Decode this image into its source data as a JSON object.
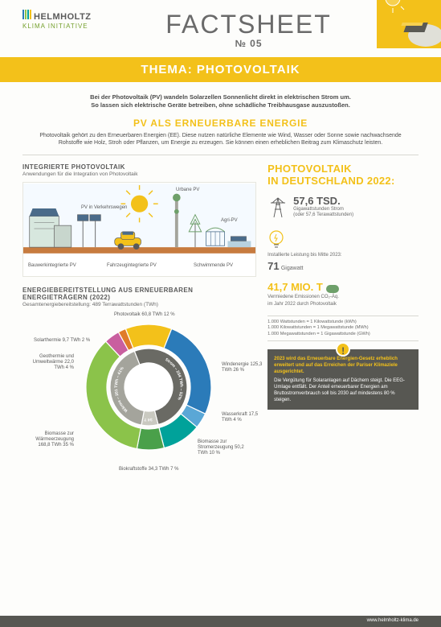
{
  "logo": {
    "name": "HELMHOLTZ",
    "sub": "KLIMA INITIATIVE",
    "bar_colors": [
      "#2b7bb9",
      "#8bc34a",
      "#00a29a",
      "#f3c11a"
    ]
  },
  "factsheet": {
    "title": "FACTSHEET",
    "number": "№ 05"
  },
  "thema": "THEMA: PHOTOVOLTAIK",
  "intro": {
    "line1": "Bei der Photovoltaik (PV) wandeln Solarzellen Sonnenlicht direkt in elektrischen Strom um.",
    "line2": "So lassen sich elektrische Geräte betreiben, ohne schädliche Treibhausgase auszustoßen."
  },
  "section_ee": {
    "title": "PV ALS ERNEUERBARE ENERGIE",
    "text": "Photovoltaik gehört zu den Erneuerbaren Energien (EE). Diese nutzen natürliche Elemente wie Wind, Wasser oder Sonne sowie nachwachsende Rohstoffe wie Holz, Stroh oder Pflanzen, um Energie zu erzeugen. Sie können einen erheblichen Beitrag zum Klimaschutz leisten."
  },
  "integrated": {
    "title": "INTEGRIERTE PHOTOVOLTAIK",
    "sub": "Anwendungen für die Integration von Photovoltaik",
    "labels": {
      "verkehr": "PV in Verkehrswegen",
      "urbane": "Urbane PV",
      "agri": "Agri-PV",
      "bauwerk": "Bauwerkintegrierte PV",
      "fahrzeug": "Fahrzeugintegrierte PV",
      "schwimm": "Schwimmende PV"
    },
    "colors": {
      "sky": "#eef5fb",
      "ground": "#c77b3f",
      "sun": "#f3c11a",
      "building1": "#d7e7de",
      "building2": "#a4a49c",
      "car": "#f3c11a",
      "tree": "#6ea06a",
      "panel": "#4a6b8a",
      "water": "#8fb8c9"
    }
  },
  "de2022": {
    "title1": "PHOTOVOLTAIK",
    "title2": "IN DEUTSCHLAND 2022:",
    "stat1_num": "57,6 TSD.",
    "stat1_lbl1": "Gigawattstunden Strom",
    "stat1_lbl2": "(oder 57,6 Terawattstunden)",
    "stat2_pre": "Installierte Leistung bis Mitte 2023:",
    "stat2_num": "71",
    "stat2_unit": "Gigawatt",
    "stat3_num": "41,7 MIO. T",
    "stat3_lbl1": "Vermiedene Emissionen CO₂-Äq.",
    "stat3_lbl2": "im Jahr 2022 durch Photovoltaik"
  },
  "units_box": {
    "l1": "1.000 Wattstunden = 1 Kilowattstunde (kWh)",
    "l2": "1.000 Kilowattstunden = 1 Megawattstunde (MWh)",
    "l3": "1.000 Megawattstunden = 1 Gigawattstunde (GWh)"
  },
  "callout": {
    "hl": "2023 wird das Erneuerbare Energien-Gesetz erheblich erweitert und auf das Erreichen der Pariser Klimaziele ausgerichtet.",
    "body": "Die Vergütung für Solaranlagen auf Dächern steigt. Die EEG-Umlage entfällt. Der Anteil erneuerbarer Energien am Bruttostromverbrauch soll bis 2030 auf mindestens 80 % steigen."
  },
  "donut": {
    "title": "ENERGIEBEREITSTELLUNG AUS ERNEUERBAREN ENERGIETRÄGERN (2022)",
    "sub": "Gesamtenergiebereitstellung: 489 Terrawattstunden (TWh)",
    "inner": {
      "strom_label": "Strom – 254 TWh – 52%",
      "waerme_label": "Wärme – 201 TWh – 41%",
      "verkehr_label": "Verkehr – 34 TWh – 7%",
      "strom_color": "#6a6a64",
      "waerme_color": "#a4a49c",
      "verkehr_color": "#c9c9c0"
    },
    "slices": [
      {
        "label": "Photovoltaik 60,8 TWh 12 %",
        "value": 12,
        "color": "#f3c11a"
      },
      {
        "label": "Windenergie 125,3 TWh 26 %",
        "value": 26,
        "color": "#2b7bb9"
      },
      {
        "label": "Wasserkraft 17,5 TWh 4 %",
        "value": 4,
        "color": "#5aa7d6"
      },
      {
        "label": "Biomasse zur Stromerzeugung 50,2 TWh 10 %",
        "value": 10,
        "color": "#00a29a"
      },
      {
        "label": "Biokraftstoffe 34,3 TWh 7 %",
        "value": 7,
        "color": "#4aa04a"
      },
      {
        "label": "Biomasse zur Wärmeerzeugung 168,8 TWh 35 %",
        "value": 35,
        "color": "#8bc34a"
      },
      {
        "label": "Geothermie und Umweltwärme 22,0 TWh 4 %",
        "value": 4,
        "color": "#c95f9f"
      },
      {
        "label": "Solarthermie 9,7 TWh 2 %",
        "value": 2,
        "color": "#e07b29"
      }
    ]
  },
  "footer_url": "www.helmholtz-klima.de"
}
